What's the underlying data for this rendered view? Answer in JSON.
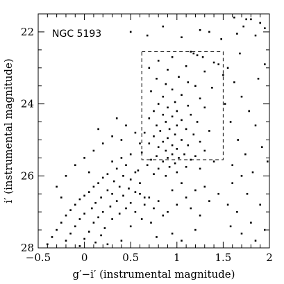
{
  "chart_data": {
    "type": "scatter",
    "title": "",
    "annotation": "NGC 5193",
    "xlabel": "g′−i′ (instrumental magnitude)",
    "ylabel": "i′ (instrumental magnitude)",
    "xlim": [
      -0.5,
      2.0
    ],
    "ylim": [
      28.0,
      21.5
    ],
    "y_inverted": true,
    "grid": false,
    "legend": "none",
    "x_ticks": [
      "−0.5",
      "0",
      "0.5",
      "1",
      "1.5",
      "2"
    ],
    "x_tick_values": [
      -0.5,
      0,
      0.5,
      1,
      1.5,
      2
    ],
    "y_ticks": [
      "22",
      "24",
      "26",
      "28"
    ],
    "y_tick_values": [
      22,
      24,
      26,
      28
    ],
    "selection_box": {
      "x": [
        0.62,
        1.5
      ],
      "y": [
        22.55,
        25.55
      ],
      "style": "dashed"
    },
    "point_color": "#000000",
    "series": [
      {
        "points": [
          [
            1.62,
            21.6
          ],
          [
            1.75,
            21.65
          ],
          [
            1.8,
            21.65
          ],
          [
            1.9,
            21.75
          ],
          [
            1.95,
            21.9
          ],
          [
            1.65,
            22.05
          ],
          [
            1.72,
            21.85
          ],
          [
            1.85,
            22.1
          ],
          [
            0.85,
            21.85
          ],
          [
            1.05,
            22.15
          ],
          [
            1.25,
            21.95
          ],
          [
            1.35,
            22.0
          ],
          [
            0.68,
            22.1
          ],
          [
            0.5,
            22.0
          ],
          [
            1.48,
            22.2
          ],
          [
            1.15,
            22.55
          ],
          [
            1.18,
            22.6
          ],
          [
            1.22,
            22.65
          ],
          [
            1.28,
            22.7
          ],
          [
            0.95,
            22.7
          ],
          [
            0.8,
            22.8
          ],
          [
            1.4,
            22.85
          ],
          [
            1.45,
            22.9
          ],
          [
            1.1,
            22.95
          ],
          [
            0.7,
            23.0
          ],
          [
            0.9,
            23.05
          ],
          [
            1.3,
            23.1
          ],
          [
            1.5,
            23.2
          ],
          [
            1.02,
            23.25
          ],
          [
            0.78,
            23.3
          ],
          [
            1.12,
            23.4
          ],
          [
            0.88,
            23.45
          ],
          [
            1.2,
            23.5
          ],
          [
            0.95,
            23.6
          ],
          [
            1.38,
            23.55
          ],
          [
            0.72,
            23.65
          ],
          [
            1.05,
            23.75
          ],
          [
            0.85,
            23.8
          ],
          [
            1.25,
            23.85
          ],
          [
            0.98,
            23.95
          ],
          [
            0.8,
            24.0
          ],
          [
            1.12,
            24.05
          ],
          [
            0.9,
            24.1
          ],
          [
            1.3,
            24.1
          ],
          [
            0.75,
            24.2
          ],
          [
            1.0,
            24.2
          ],
          [
            0.85,
            24.3
          ],
          [
            1.15,
            24.3
          ],
          [
            0.95,
            24.35
          ],
          [
            0.7,
            24.4
          ],
          [
            1.05,
            24.45
          ],
          [
            0.88,
            24.5
          ],
          [
            1.22,
            24.5
          ],
          [
            0.78,
            24.6
          ],
          [
            1.0,
            24.6
          ],
          [
            0.92,
            24.7
          ],
          [
            1.1,
            24.7
          ],
          [
            0.82,
            24.75
          ],
          [
            1.35,
            24.75
          ],
          [
            0.65,
            24.8
          ],
          [
            0.98,
            24.85
          ],
          [
            1.18,
            24.85
          ],
          [
            0.75,
            24.9
          ],
          [
            0.9,
            24.95
          ],
          [
            1.05,
            25.0
          ],
          [
            0.85,
            25.05
          ],
          [
            1.25,
            25.05
          ],
          [
            0.7,
            25.1
          ],
          [
            0.95,
            25.15
          ],
          [
            1.12,
            25.15
          ],
          [
            0.8,
            25.2
          ],
          [
            1.0,
            25.25
          ],
          [
            0.88,
            25.3
          ],
          [
            1.3,
            25.3
          ],
          [
            0.62,
            25.35
          ],
          [
            0.95,
            25.4
          ],
          [
            1.08,
            25.4
          ],
          [
            0.78,
            25.45
          ],
          [
            1.2,
            25.45
          ],
          [
            0.9,
            25.5
          ],
          [
            1.02,
            25.5
          ],
          [
            0.72,
            25.55
          ],
          [
            1.15,
            25.55
          ],
          [
            0.85,
            25.6
          ],
          [
            0.98,
            25.65
          ],
          [
            1.4,
            25.6
          ],
          [
            0.68,
            25.7
          ],
          [
            0.92,
            25.75
          ],
          [
            1.1,
            25.75
          ],
          [
            0.8,
            25.8
          ],
          [
            1.25,
            25.8
          ],
          [
            0.58,
            25.85
          ],
          [
            1.0,
            25.9
          ],
          [
            0.75,
            25.95
          ],
          [
            0.88,
            26.0
          ],
          [
            0.5,
            25.4
          ],
          [
            0.4,
            25.5
          ],
          [
            0.3,
            25.6
          ],
          [
            0.45,
            25.7
          ],
          [
            0.35,
            25.8
          ],
          [
            0.55,
            25.9
          ],
          [
            0.25,
            25.95
          ],
          [
            0.42,
            26.0
          ],
          [
            0.2,
            26.05
          ],
          [
            0.5,
            26.1
          ],
          [
            0.32,
            26.15
          ],
          [
            0.15,
            26.2
          ],
          [
            0.6,
            26.2
          ],
          [
            0.38,
            26.3
          ],
          [
            0.1,
            26.3
          ],
          [
            0.48,
            26.35
          ],
          [
            0.25,
            26.4
          ],
          [
            0.05,
            26.45
          ],
          [
            0.55,
            26.45
          ],
          [
            0.3,
            26.5
          ],
          [
            0.0,
            26.55
          ],
          [
            0.42,
            26.55
          ],
          [
            0.18,
            26.6
          ],
          [
            0.65,
            26.6
          ],
          [
            -0.05,
            26.65
          ],
          [
            0.35,
            26.7
          ],
          [
            0.12,
            26.75
          ],
          [
            0.5,
            26.75
          ],
          [
            -0.1,
            26.8
          ],
          [
            0.28,
            26.85
          ],
          [
            0.08,
            26.9
          ],
          [
            0.45,
            26.9
          ],
          [
            -0.15,
            26.95
          ],
          [
            0.2,
            27.0
          ],
          [
            0.0,
            27.05
          ],
          [
            0.38,
            27.05
          ],
          [
            -0.2,
            27.1
          ],
          [
            0.15,
            27.15
          ],
          [
            -0.05,
            27.2
          ],
          [
            0.3,
            27.2
          ],
          [
            -0.25,
            27.3
          ],
          [
            0.1,
            27.3
          ],
          [
            -0.1,
            27.4
          ],
          [
            0.22,
            27.45
          ],
          [
            -0.3,
            27.5
          ],
          [
            0.05,
            27.55
          ],
          [
            -0.15,
            27.6
          ],
          [
            0.18,
            27.65
          ],
          [
            -0.35,
            27.7
          ],
          [
            0.0,
            27.75
          ],
          [
            -0.2,
            27.8
          ],
          [
            0.12,
            27.85
          ],
          [
            -0.4,
            27.9
          ],
          [
            -0.05,
            27.95
          ],
          [
            0.6,
            26.5
          ],
          [
            0.7,
            26.6
          ],
          [
            0.8,
            26.7
          ],
          [
            0.65,
            26.8
          ],
          [
            0.75,
            26.9
          ],
          [
            0.55,
            27.0
          ],
          [
            0.85,
            27.1
          ],
          [
            0.62,
            27.2
          ],
          [
            0.72,
            27.3
          ],
          [
            0.5,
            27.4
          ],
          [
            0.9,
            27.0
          ],
          [
            1.0,
            26.8
          ],
          [
            1.1,
            26.6
          ],
          [
            0.95,
            26.4
          ],
          [
            1.05,
            26.2
          ],
          [
            1.2,
            26.4
          ],
          [
            1.3,
            26.3
          ],
          [
            1.15,
            26.9
          ],
          [
            1.25,
            27.1
          ],
          [
            1.35,
            26.7
          ],
          [
            1.45,
            26.5
          ],
          [
            1.6,
            26.2
          ],
          [
            1.7,
            26.0
          ],
          [
            1.55,
            26.8
          ],
          [
            0.3,
            24.9
          ],
          [
            0.2,
            25.1
          ],
          [
            0.1,
            25.3
          ],
          [
            0.4,
            25.0
          ],
          [
            0.0,
            25.5
          ],
          [
            -0.1,
            25.7
          ],
          [
            0.05,
            25.9
          ],
          [
            -0.2,
            26.0
          ],
          [
            -0.3,
            26.3
          ],
          [
            -0.25,
            26.6
          ],
          [
            0.45,
            24.6
          ],
          [
            0.55,
            24.8
          ],
          [
            0.35,
            24.4
          ],
          [
            0.6,
            25.1
          ],
          [
            0.15,
            24.7
          ],
          [
            1.55,
            23.0
          ],
          [
            1.62,
            23.4
          ],
          [
            1.7,
            23.8
          ],
          [
            1.78,
            24.2
          ],
          [
            1.58,
            24.5
          ],
          [
            1.85,
            24.6
          ],
          [
            1.66,
            25.0
          ],
          [
            1.92,
            25.2
          ],
          [
            1.74,
            25.4
          ],
          [
            1.98,
            25.6
          ],
          [
            1.82,
            25.9
          ],
          [
            1.6,
            25.7
          ],
          [
            1.52,
            24.0
          ],
          [
            1.88,
            23.3
          ],
          [
            1.95,
            22.9
          ],
          [
            1.68,
            22.6
          ],
          [
            1.76,
            26.5
          ],
          [
            1.9,
            26.8
          ],
          [
            1.65,
            27.0
          ],
          [
            1.8,
            27.3
          ],
          [
            1.95,
            27.5
          ],
          [
            1.7,
            27.6
          ],
          [
            1.85,
            27.8
          ],
          [
            1.58,
            27.4
          ],
          [
            0.95,
            27.6
          ],
          [
            1.05,
            27.8
          ],
          [
            0.78,
            27.7
          ],
          [
            0.4,
            27.8
          ],
          [
            0.25,
            27.9
          ],
          [
            1.2,
            27.5
          ]
        ]
      }
    ]
  }
}
